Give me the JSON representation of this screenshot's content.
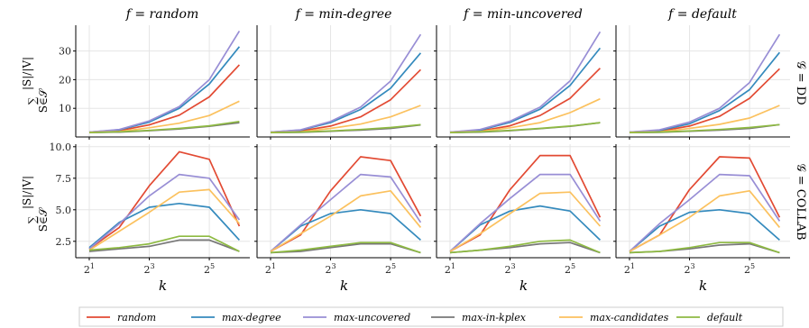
{
  "figure": {
    "columns": [
      "f = random",
      "f = min-degree",
      "f = min-uncovered",
      "f = default"
    ],
    "rows": [
      "𝒢 = DD",
      "𝒢 = COLLAB"
    ],
    "ylabel_sum": "∑",
    "ylabel_sub": "S∈𝒮",
    "ylabel_frac": "|S|/|V|",
    "xlabel": "k",
    "xtick_labels": [
      {
        "base": "2",
        "exp": "1"
      },
      {
        "base": "2",
        "exp": "3"
      },
      {
        "base": "2",
        "exp": "5"
      }
    ]
  },
  "colors": {
    "random": "#e24a33",
    "max-degree": "#348abd",
    "max-uncovered": "#988ed5",
    "max-in-kplex": "#777777",
    "max-candidates": "#fbc15e",
    "default": "#8eba42"
  },
  "legend": [
    {
      "label": "random",
      "color": "#e24a33"
    },
    {
      "label": "max-degree",
      "color": "#348abd"
    },
    {
      "label": "max-uncovered",
      "color": "#988ed5"
    },
    {
      "label": "max-in-kplex",
      "color": "#777777"
    },
    {
      "label": "max-candidates",
      "color": "#fbc15e"
    },
    {
      "label": "default",
      "color": "#8eba42"
    }
  ],
  "chart_data": {
    "type": "line",
    "x": [
      1,
      2,
      3,
      4,
      5,
      6
    ],
    "x_tick_positions": [
      1,
      3,
      5
    ],
    "xlim": [
      0.55,
      6.35
    ],
    "grid": true,
    "legend_placement": "bottom",
    "rows": [
      {
        "name": "DD",
        "ylim": [
          0,
          39
        ],
        "yticks": [
          10,
          20,
          30
        ],
        "ytick_labels": [
          "10",
          "20",
          "30"
        ],
        "panels": [
          {
            "series": [
              {
                "name": "random",
                "values": [
                  1.6,
                  2.2,
                  4.2,
                  7.6,
                  14.0,
                  25.2
                ]
              },
              {
                "name": "max-degree",
                "values": [
                  1.7,
                  2.5,
                  5.2,
                  10.0,
                  18.5,
                  31.5
                ]
              },
              {
                "name": "max-uncovered",
                "values": [
                  1.7,
                  2.6,
                  5.6,
                  10.6,
                  20.0,
                  37.0
                ]
              },
              {
                "name": "max-in-kplex",
                "values": [
                  1.5,
                  1.7,
                  2.2,
                  2.8,
                  3.7,
                  5.0
                ]
              },
              {
                "name": "max-candidates",
                "values": [
                  1.6,
                  1.9,
                  3.2,
                  4.8,
                  7.5,
                  12.5
                ]
              },
              {
                "name": "default",
                "values": [
                  1.5,
                  1.8,
                  2.3,
                  3.0,
                  3.9,
                  5.4
                ]
              }
            ]
          },
          {
            "series": [
              {
                "name": "random",
                "values": [
                  1.6,
                  2.1,
                  3.8,
                  7.0,
                  13.0,
                  23.5
                ]
              },
              {
                "name": "max-degree",
                "values": [
                  1.7,
                  2.4,
                  5.0,
                  9.6,
                  17.0,
                  29.3
                ]
              },
              {
                "name": "max-uncovered",
                "values": [
                  1.7,
                  2.5,
                  5.4,
                  10.4,
                  19.5,
                  35.8
                ]
              },
              {
                "name": "max-in-kplex",
                "values": [
                  1.5,
                  1.6,
                  2.0,
                  2.4,
                  3.0,
                  4.2
                ]
              },
              {
                "name": "max-candidates",
                "values": [
                  1.6,
                  1.8,
                  3.0,
                  4.5,
                  7.0,
                  11.0
                ]
              },
              {
                "name": "default",
                "values": [
                  1.5,
                  1.7,
                  2.1,
                  2.6,
                  3.3,
                  4.3
                ]
              }
            ]
          },
          {
            "series": [
              {
                "name": "random",
                "values": [
                  1.6,
                  2.1,
                  3.9,
                  7.5,
                  13.5,
                  24.0
                ]
              },
              {
                "name": "max-degree",
                "values": [
                  1.7,
                  2.4,
                  5.1,
                  9.7,
                  18.0,
                  31.0
                ]
              },
              {
                "name": "max-uncovered",
                "values": [
                  1.7,
                  2.6,
                  5.5,
                  10.4,
                  19.6,
                  36.7
                ]
              },
              {
                "name": "max-in-kplex",
                "values": [
                  1.5,
                  1.7,
                  2.2,
                  2.9,
                  3.7,
                  5.0
                ]
              },
              {
                "name": "max-candidates",
                "values": [
                  1.6,
                  1.9,
                  3.2,
                  5.0,
                  8.5,
                  13.3
                ]
              },
              {
                "name": "default",
                "values": [
                  1.5,
                  1.8,
                  2.3,
                  3.0,
                  3.8,
                  5.0
                ]
              }
            ]
          },
          {
            "series": [
              {
                "name": "random",
                "values": [
                  1.6,
                  2.0,
                  3.8,
                  7.2,
                  13.5,
                  23.8
                ]
              },
              {
                "name": "max-degree",
                "values": [
                  1.7,
                  2.3,
                  4.6,
                  9.2,
                  16.5,
                  29.5
                ]
              },
              {
                "name": "max-uncovered",
                "values": [
                  1.7,
                  2.5,
                  5.2,
                  10.0,
                  19.0,
                  35.8
                ]
              },
              {
                "name": "max-in-kplex",
                "values": [
                  1.5,
                  1.6,
                  2.0,
                  2.4,
                  3.0,
                  4.3
                ]
              },
              {
                "name": "max-candidates",
                "values": [
                  1.6,
                  1.8,
                  3.0,
                  4.4,
                  6.6,
                  11.0
                ]
              },
              {
                "name": "default",
                "values": [
                  1.5,
                  1.7,
                  2.1,
                  2.6,
                  3.3,
                  4.3
                ]
              }
            ]
          }
        ]
      },
      {
        "name": "COLLAB",
        "ylim": [
          1.2,
          10.2
        ],
        "yticks": [
          2.5,
          5.0,
          7.5,
          10.0
        ],
        "ytick_labels": [
          "2.5",
          "5.0",
          "7.5",
          "10.0"
        ],
        "panels": [
          {
            "series": [
              {
                "name": "random",
                "values": [
                  1.9,
                  3.6,
                  6.9,
                  9.6,
                  9.0,
                  3.7
                ]
              },
              {
                "name": "max-degree",
                "values": [
                  2.0,
                  4.0,
                  5.2,
                  5.5,
                  5.2,
                  2.6
                ]
              },
              {
                "name": "max-uncovered",
                "values": [
                  1.9,
                  3.9,
                  6.1,
                  7.8,
                  7.5,
                  4.2
                ]
              },
              {
                "name": "max-in-kplex",
                "values": [
                  1.7,
                  1.9,
                  2.1,
                  2.6,
                  2.6,
                  1.7
                ]
              },
              {
                "name": "max-candidates",
                "values": [
                  1.8,
                  3.3,
                  4.8,
                  6.4,
                  6.6,
                  3.9
                ]
              },
              {
                "name": "default",
                "values": [
                  1.8,
                  2.0,
                  2.3,
                  2.9,
                  2.9,
                  1.7
                ]
              }
            ]
          },
          {
            "series": [
              {
                "name": "random",
                "values": [
                  1.7,
                  3.0,
                  6.5,
                  9.2,
                  8.9,
                  4.5
                ]
              },
              {
                "name": "max-degree",
                "values": [
                  1.7,
                  3.7,
                  4.7,
                  5.0,
                  4.7,
                  2.6
                ]
              },
              {
                "name": "max-uncovered",
                "values": [
                  1.7,
                  3.8,
                  5.8,
                  7.8,
                  7.6,
                  4.0
                ]
              },
              {
                "name": "max-in-kplex",
                "values": [
                  1.6,
                  1.7,
                  2.0,
                  2.3,
                  2.3,
                  1.6
                ]
              },
              {
                "name": "max-candidates",
                "values": [
                  1.7,
                  3.1,
                  4.5,
                  6.1,
                  6.5,
                  3.6
                ]
              },
              {
                "name": "default",
                "values": [
                  1.6,
                  1.8,
                  2.1,
                  2.4,
                  2.4,
                  1.6
                ]
              }
            ]
          },
          {
            "series": [
              {
                "name": "random",
                "values": [
                  1.7,
                  3.0,
                  6.6,
                  9.3,
                  9.3,
                  4.4
                ]
              },
              {
                "name": "max-degree",
                "values": [
                  1.7,
                  3.8,
                  4.9,
                  5.3,
                  4.9,
                  2.6
                ]
              },
              {
                "name": "max-uncovered",
                "values": [
                  1.7,
                  3.9,
                  5.9,
                  7.8,
                  7.8,
                  4.1
                ]
              },
              {
                "name": "max-in-kplex",
                "values": [
                  1.6,
                  1.8,
                  2.0,
                  2.3,
                  2.4,
                  1.6
                ]
              },
              {
                "name": "max-candidates",
                "values": [
                  1.7,
                  3.1,
                  4.7,
                  6.3,
                  6.4,
                  3.7
                ]
              },
              {
                "name": "default",
                "values": [
                  1.6,
                  1.8,
                  2.1,
                  2.5,
                  2.6,
                  1.6
                ]
              }
            ]
          },
          {
            "series": [
              {
                "name": "random",
                "values": [
                  1.7,
                  3.0,
                  6.6,
                  9.2,
                  9.1,
                  4.4
                ]
              },
              {
                "name": "max-degree",
                "values": [
                  1.7,
                  3.7,
                  4.8,
                  5.0,
                  4.7,
                  2.6
                ]
              },
              {
                "name": "max-uncovered",
                "values": [
                  1.7,
                  3.9,
                  5.8,
                  7.8,
                  7.7,
                  4.1
                ]
              },
              {
                "name": "max-in-kplex",
                "values": [
                  1.6,
                  1.7,
                  1.9,
                  2.2,
                  2.3,
                  1.6
                ]
              },
              {
                "name": "max-candidates",
                "values": [
                  1.7,
                  3.0,
                  4.4,
                  6.1,
                  6.5,
                  3.6
                ]
              },
              {
                "name": "default",
                "values": [
                  1.6,
                  1.7,
                  2.0,
                  2.4,
                  2.4,
                  1.6
                ]
              }
            ]
          }
        ]
      }
    ]
  }
}
